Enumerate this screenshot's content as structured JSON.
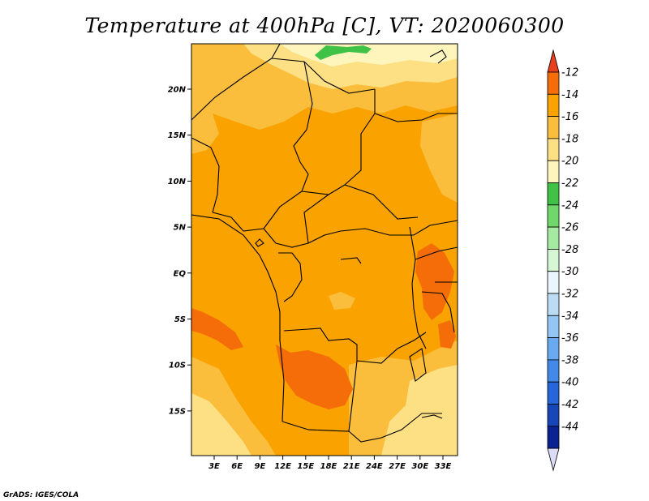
{
  "title": "Temperature at 400hPa [C], VT: 2020060300",
  "credit": "GrADS: IGES/COLA",
  "map": {
    "lat_labels": [
      "20N",
      "15N",
      "10N",
      "5N",
      "EQ",
      "5S",
      "10S",
      "15S"
    ],
    "lon_labels": [
      "3E",
      "6E",
      "9E",
      "12E",
      "15E",
      "18E",
      "21E",
      "24E",
      "27E",
      "30E",
      "33E"
    ],
    "colors": {
      "c_16_14": "#f9a200",
      "c_18_16": "#fbbe3c",
      "c_20_18": "#fde084",
      "c_22_20": "#fef5bc",
      "c_24_22": "#3fc246",
      "c_14_12": "#f46d08"
    }
  },
  "colorbar": {
    "labels": [
      "-12",
      "-14",
      "-16",
      "-18",
      "-20",
      "-22",
      "-24",
      "-26",
      "-28",
      "-30",
      "-32",
      "-34",
      "-36",
      "-38",
      "-40",
      "-42",
      "-44"
    ],
    "colors": [
      "#e8401d",
      "#f46d08",
      "#f9a200",
      "#fbbe3c",
      "#fde084",
      "#fef5bc",
      "#3fc246",
      "#70d86a",
      "#a4eba1",
      "#d5f7d4",
      "#e9f6fc",
      "#bcdcf6",
      "#93c6f2",
      "#6aaaf0",
      "#4389ea",
      "#2566d8",
      "#1845b8",
      "#0b2293",
      "#dcdcf6"
    ]
  }
}
